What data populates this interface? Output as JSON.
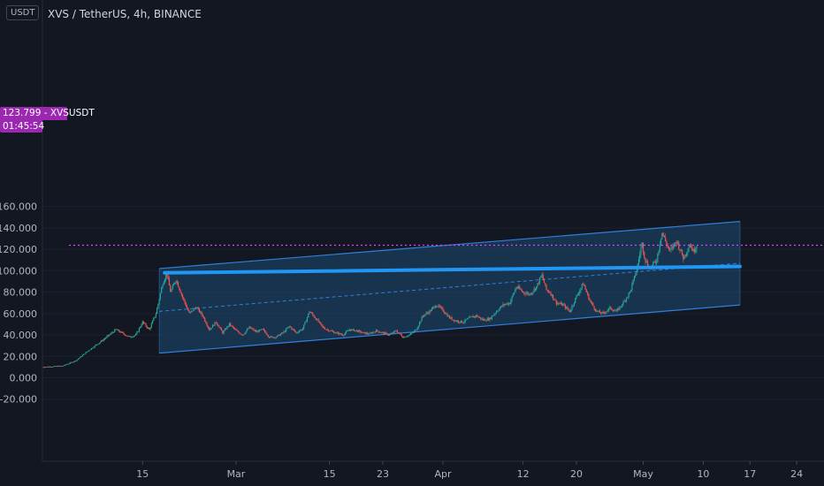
{
  "header": {
    "unit_badge": "USDT",
    "title": "XVS / TetherUS, 4h, BINANCE"
  },
  "last_price": {
    "value": 123.799,
    "label": "123.799 - XVSUSDT",
    "countdown": "01:45:54",
    "color": "#e040fb"
  },
  "colors": {
    "background": "#131722",
    "channel_fill": "#1e4a72",
    "channel_line": "#2f80d8",
    "trendline": "#2196f3",
    "up_candle": "#26a69a",
    "down_candle": "#ef5350"
  },
  "chart_data": {
    "type": "candlestick",
    "title": "XVS / TetherUS, 4h, BINANCE",
    "ylim": [
      -30,
      165
    ],
    "y_ticks": [
      "160.000",
      "140.000",
      "120.000",
      "100.000",
      "80.000",
      "60.000",
      "40.000",
      "20.000",
      "0.000",
      "-20.000"
    ],
    "y_tick_values": [
      160,
      140,
      120,
      100,
      80,
      60,
      40,
      20,
      0,
      -20
    ],
    "x_ticks": [
      {
        "label": "15",
        "day": 15
      },
      {
        "label": "Mar",
        "day": 29
      },
      {
        "label": "15",
        "day": 43
      },
      {
        "label": "23",
        "day": 51
      },
      {
        "label": "Apr",
        "day": 60
      },
      {
        "label": "12",
        "day": 72
      },
      {
        "label": "20",
        "day": 80
      },
      {
        "label": "May",
        "day": 90
      },
      {
        "label": "10",
        "day": 99
      },
      {
        "label": "17",
        "day": 106
      },
      {
        "label": "24",
        "day": 113
      }
    ],
    "xlim": [
      -0.5,
      117.5
    ],
    "price_path": [
      [
        0,
        10
      ],
      [
        3,
        11
      ],
      [
        5,
        16
      ],
      [
        7,
        26
      ],
      [
        9,
        35
      ],
      [
        11,
        45
      ],
      [
        13,
        38
      ],
      [
        14,
        40
      ],
      [
        15,
        52
      ],
      [
        16,
        45
      ],
      [
        17,
        60
      ],
      [
        18,
        88
      ],
      [
        18.6,
        98
      ],
      [
        19.2,
        80
      ],
      [
        20,
        92
      ],
      [
        21,
        75
      ],
      [
        22,
        60
      ],
      [
        23,
        66
      ],
      [
        24,
        58
      ],
      [
        25,
        45
      ],
      [
        26,
        52
      ],
      [
        27,
        42
      ],
      [
        28,
        50
      ],
      [
        29,
        44
      ],
      [
        30,
        40
      ],
      [
        31,
        47
      ],
      [
        32,
        43
      ],
      [
        33,
        45
      ],
      [
        34,
        38
      ],
      [
        35,
        38
      ],
      [
        36,
        42
      ],
      [
        37,
        48
      ],
      [
        38,
        42
      ],
      [
        39,
        46
      ],
      [
        40,
        62
      ],
      [
        41,
        55
      ],
      [
        42,
        47
      ],
      [
        43,
        44
      ],
      [
        44,
        42
      ],
      [
        45,
        40
      ],
      [
        46,
        45
      ],
      [
        47,
        44
      ],
      [
        48,
        42
      ],
      [
        49,
        41
      ],
      [
        50,
        44
      ],
      [
        51,
        42
      ],
      [
        52,
        40
      ],
      [
        53,
        44
      ],
      [
        54,
        38
      ],
      [
        55,
        40
      ],
      [
        56,
        45
      ],
      [
        57,
        58
      ],
      [
        58,
        62
      ],
      [
        59,
        68
      ],
      [
        60,
        63
      ],
      [
        61,
        56
      ],
      [
        62,
        53
      ],
      [
        63,
        52
      ],
      [
        64,
        56
      ],
      [
        65,
        58
      ],
      [
        66,
        54
      ],
      [
        67,
        55
      ],
      [
        68,
        62
      ],
      [
        69,
        68
      ],
      [
        70,
        70
      ],
      [
        71,
        85
      ],
      [
        72,
        80
      ],
      [
        73,
        78
      ],
      [
        74,
        85
      ],
      [
        74.8,
        96
      ],
      [
        75.5,
        82
      ],
      [
        76,
        80
      ],
      [
        77,
        70
      ],
      [
        78,
        68
      ],
      [
        79,
        62
      ],
      [
        80,
        76
      ],
      [
        81,
        88
      ],
      [
        82,
        72
      ],
      [
        83,
        62
      ],
      [
        84,
        60
      ],
      [
        85,
        65
      ],
      [
        86,
        62
      ],
      [
        87,
        70
      ],
      [
        88,
        80
      ],
      [
        89,
        100
      ],
      [
        89.8,
        126
      ],
      [
        90.3,
        110
      ],
      [
        91,
        102
      ],
      [
        92,
        110
      ],
      [
        92.8,
        136
      ],
      [
        93.5,
        125
      ],
      [
        94,
        118
      ],
      [
        95,
        128
      ],
      [
        96,
        112
      ],
      [
        97,
        125
      ],
      [
        97.5,
        118
      ],
      [
        98,
        123.8
      ]
    ],
    "channel": {
      "start_day": 17.5,
      "end_day": 104.5,
      "upper": [
        102,
        146
      ],
      "lower": [
        23,
        68
      ],
      "mid": [
        62,
        107
      ]
    },
    "trendline": {
      "start_day": 18.3,
      "end_day": 104.5,
      "values": [
        98,
        104
      ]
    }
  }
}
